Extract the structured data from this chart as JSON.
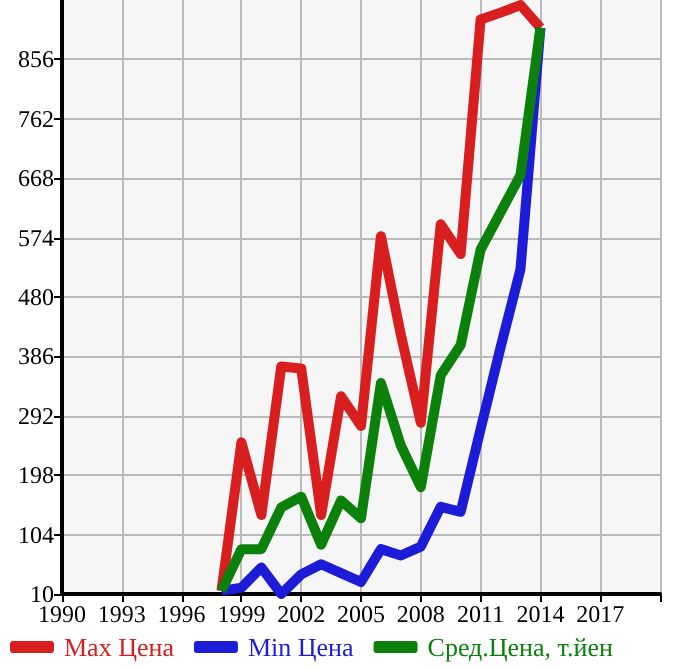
{
  "chart_data": {
    "type": "line",
    "x": [
      1998,
      1999,
      2000,
      2001,
      2002,
      2003,
      2004,
      2005,
      2006,
      2007,
      2008,
      2009,
      2010,
      2011,
      2012,
      2013,
      2014
    ],
    "series": [
      {
        "name": "Max Цена",
        "color": "#d81e1e",
        "values": [
          15,
          250,
          135,
          370,
          367,
          135,
          323,
          276,
          576,
          420,
          281,
          595,
          548,
          919,
          930,
          942,
          906
        ]
      },
      {
        "name": "Min Цена",
        "color": "#1c1cd8",
        "values": [
          15,
          20,
          52,
          10,
          41,
          57,
          43,
          29,
          81,
          71,
          85,
          148,
          140,
          271,
          400,
          524,
          906
        ]
      },
      {
        "name": "Сред.Цена, т.йен",
        "color": "#0b800b",
        "values": [
          15,
          81,
          81,
          147,
          164,
          88,
          158,
          130,
          344,
          245,
          179,
          356,
          404,
          555,
          614,
          673,
          906
        ]
      }
    ],
    "xlim": [
      1990,
      2020
    ],
    "xticks": [
      1990,
      1993,
      1996,
      1999,
      2002,
      2005,
      2008,
      2011,
      2014,
      2017
    ],
    "ylim": [
      10,
      950
    ],
    "yticks": [
      10,
      104,
      198,
      292,
      386,
      480,
      574,
      668,
      762,
      856
    ],
    "grid": true,
    "legend": "bottom",
    "marker": "none",
    "line_style": "solid"
  }
}
